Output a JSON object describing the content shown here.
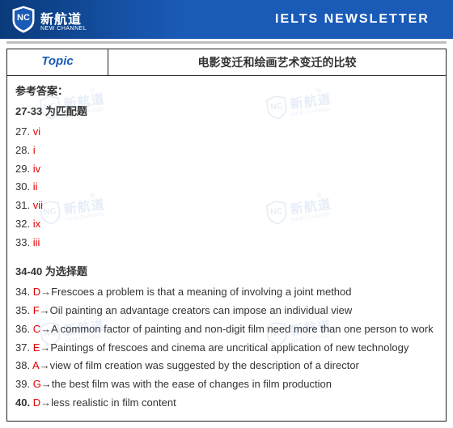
{
  "header": {
    "logo_cn": "新航道",
    "logo_en": "NEW CHANNEL",
    "title": "IELTS  NEWSLETTER"
  },
  "topic": {
    "label": "Topic",
    "value": "电影变迁和绘画艺术变迁的比较"
  },
  "ref_label": "参考答案：",
  "section_match": {
    "title": "27-33 为匹配题",
    "items": [
      {
        "num": "27.",
        "ans": "vi"
      },
      {
        "num": "28.",
        "ans": "i"
      },
      {
        "num": "29.",
        "ans": "iv"
      },
      {
        "num": "30.",
        "ans": "ii"
      },
      {
        "num": "31.",
        "ans": "vii"
      },
      {
        "num": "32.",
        "ans": "ix"
      },
      {
        "num": "33.",
        "ans": "iii"
      }
    ]
  },
  "section_choice": {
    "title": "34-40 为选择题",
    "items": [
      {
        "num": "34.",
        "letter": "D",
        "text": "→Frescoes a problem is that a meaning of involving a joint method"
      },
      {
        "num": "35.",
        "letter": "F",
        "text": "→Oil painting an advantage creators can impose an individual view"
      },
      {
        "num": "36.",
        "letter": "C",
        "text": "→A common factor of painting and non-digit film need more than one person to work"
      },
      {
        "num": "37.",
        "letter": "E",
        "text": "→Paintings of frescoes and cinema are uncritical application of new technology"
      },
      {
        "num": "38.",
        "letter": "A",
        "text": "→view of film creation was suggested by the description of a director"
      },
      {
        "num": "39.",
        "letter": "G",
        "text": "→the best film was with the ease of changes in film production"
      },
      {
        "num": "40.",
        "letter": "D",
        "text": "→less realistic in film content",
        "bold_num": true
      }
    ]
  },
  "colors": {
    "brand_blue": "#1a5bb8",
    "header_dark": "#0a3a7a",
    "answer_red": "#e60000",
    "border": "#222222",
    "underline": "#c0c0c0"
  },
  "watermark": {
    "cn": "新航道",
    "en": "NEW CHANNEL"
  }
}
